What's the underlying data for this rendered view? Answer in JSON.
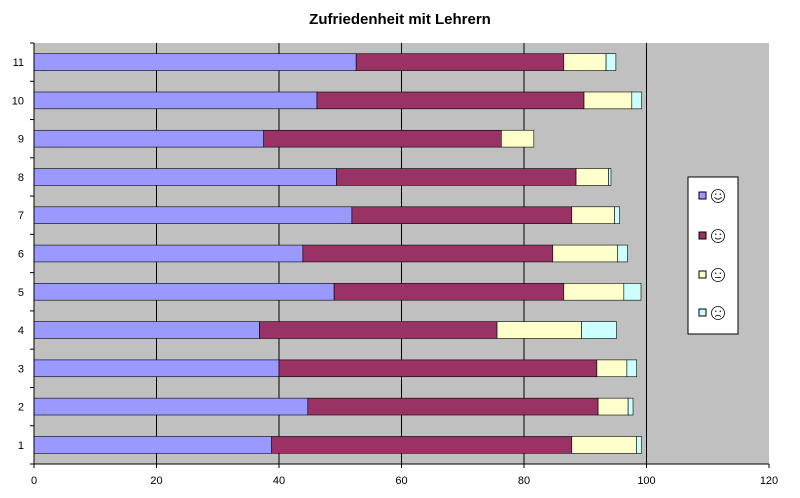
{
  "chart_data": {
    "type": "bar",
    "orientation": "horizontal",
    "stacked": true,
    "title": "Zufriedenheit mit Lehrern",
    "xlabel": "",
    "ylabel": "",
    "xlim": [
      0,
      120
    ],
    "x_ticks": [
      0,
      20,
      40,
      60,
      80,
      100,
      120
    ],
    "grid": true,
    "plot_background": "#c0c0c0",
    "legend_position": "right",
    "categories": [
      "1",
      "2",
      "3",
      "4",
      "5",
      "6",
      "7",
      "8",
      "9",
      "10",
      "11"
    ],
    "series": [
      {
        "color": "#9999ff",
        "icon": "very-happy-smiley-icon",
        "values": [
          38.8,
          44.7,
          40.0,
          36.8,
          49.0,
          43.9,
          51.9,
          49.4,
          37.5,
          46.2,
          52.6
        ]
      },
      {
        "color": "#993366",
        "icon": "happy-smiley-icon",
        "values": [
          49.0,
          47.4,
          51.9,
          38.8,
          37.5,
          40.8,
          35.9,
          39.1,
          38.8,
          43.6,
          33.9
        ]
      },
      {
        "color": "#ffffcc",
        "icon": "neutral-smiley-icon",
        "values": [
          10.6,
          4.9,
          4.9,
          13.8,
          9.8,
          10.6,
          7.0,
          5.3,
          5.3,
          7.8,
          6.9
        ]
      },
      {
        "color": "#ccffff",
        "icon": "sad-smiley-icon",
        "values": [
          0.8,
          0.8,
          1.6,
          5.7,
          2.8,
          1.6,
          0.8,
          0.4,
          0.0,
          1.6,
          1.6
        ]
      }
    ]
  }
}
